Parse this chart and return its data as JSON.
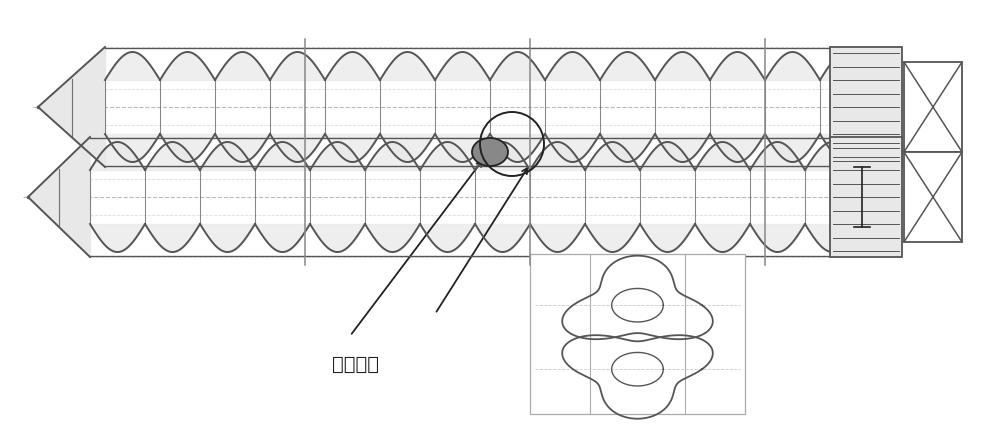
{
  "bg_color": "#ffffff",
  "line_color": "#555555",
  "dark_line": "#222222",
  "light_gray": "#aaaaaa",
  "annotation_text": "玉米茎秵",
  "figsize": [
    10.0,
    4.27
  ],
  "dpi": 100
}
